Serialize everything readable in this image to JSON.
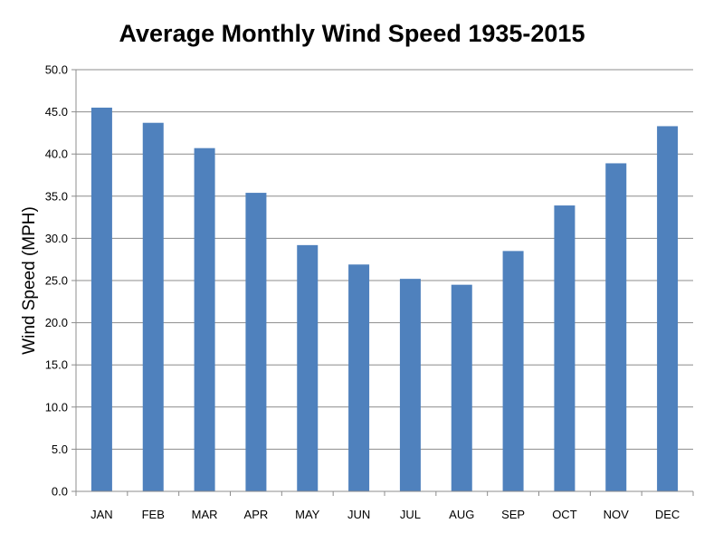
{
  "chart_data": {
    "type": "bar",
    "title": "Average Monthly Wind Speed 1935-2015",
    "xlabel": "",
    "ylabel": "Wind Speed (MPH)",
    "categories": [
      "JAN",
      "FEB",
      "MAR",
      "APR",
      "MAY",
      "JUN",
      "JUL",
      "AUG",
      "SEP",
      "OCT",
      "NOV",
      "DEC"
    ],
    "values": [
      45.5,
      43.7,
      40.7,
      35.4,
      29.2,
      26.9,
      25.2,
      24.5,
      28.5,
      33.9,
      38.9,
      43.3
    ],
    "ylim": [
      0,
      50
    ],
    "yticks": [
      "0.0",
      "5.0",
      "10.0",
      "15.0",
      "20.0",
      "25.0",
      "30.0",
      "35.0",
      "40.0",
      "45.0",
      "50.0"
    ],
    "grid": true,
    "legend": "none",
    "colors": {
      "bar": "#4f81bd",
      "grid": "#8c8c8c",
      "axis": "#8c8c8c"
    }
  }
}
